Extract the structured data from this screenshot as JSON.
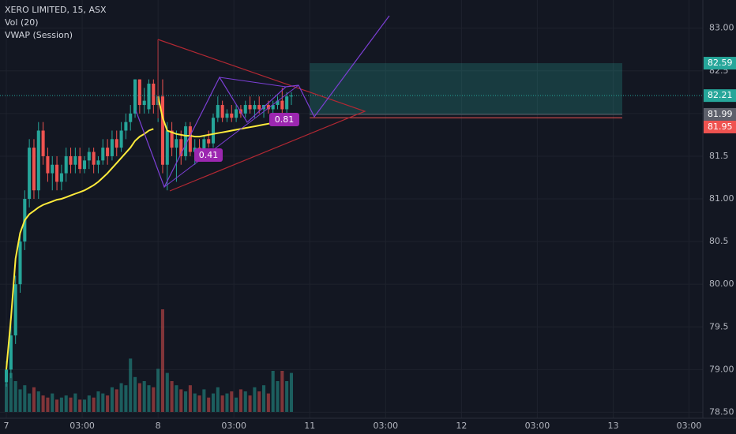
{
  "header": {
    "symbol": "XERO LIMITED, 15, ASX",
    "volume": "Vol (20)",
    "vwap": "VWAP (Session)"
  },
  "annotations": [
    0.41,
    0.81
  ],
  "chart_data": {
    "type": "candlestick",
    "x": [
      0,
      1,
      2,
      3,
      4,
      5,
      6,
      7,
      8,
      9,
      10,
      11,
      12,
      13,
      14,
      15,
      16,
      17,
      18,
      19,
      20,
      21,
      22,
      23,
      24,
      25,
      26,
      27,
      28,
      29,
      30,
      31,
      32,
      33,
      34,
      35,
      36,
      37,
      38,
      39,
      40,
      41,
      42,
      43,
      44,
      45,
      46,
      47,
      48,
      49,
      50,
      51,
      52,
      53,
      54,
      55,
      56,
      57,
      58,
      59,
      60,
      61,
      62
    ],
    "open": [
      78.85,
      79.0,
      79.4,
      80.0,
      80.5,
      81.0,
      81.6,
      81.1,
      81.8,
      81.5,
      81.3,
      81.4,
      81.2,
      81.3,
      81.5,
      81.4,
      81.5,
      81.35,
      81.45,
      81.55,
      81.4,
      81.45,
      81.6,
      81.5,
      81.7,
      81.6,
      81.8,
      81.9,
      82.0,
      82.4,
      82.1,
      82.05,
      82.35,
      82.1,
      82.2,
      81.4,
      81.8,
      81.6,
      81.7,
      81.5,
      81.85,
      81.55,
      81.6,
      81.5,
      81.7,
      81.65,
      81.95,
      82.1,
      81.95,
      82.0,
      81.95,
      82.05,
      82.0,
      82.1,
      82.05,
      82.1,
      82.05,
      82.1,
      82.05,
      82.1,
      82.15,
      82.05,
      82.2
    ],
    "high": [
      79.1,
      79.6,
      80.1,
      80.6,
      81.1,
      81.7,
      81.7,
      81.9,
      81.9,
      81.6,
      81.5,
      81.5,
      81.4,
      81.6,
      81.6,
      81.6,
      81.6,
      81.5,
      81.6,
      81.6,
      81.5,
      81.7,
      81.7,
      81.8,
      81.8,
      81.9,
      82.0,
      82.1,
      82.4,
      82.4,
      82.3,
      82.4,
      82.4,
      82.85,
      82.4,
      81.9,
      81.9,
      81.8,
      81.8,
      81.9,
      81.9,
      81.7,
      81.7,
      81.75,
      81.8,
      82.0,
      82.2,
      82.15,
      82.05,
      82.1,
      82.1,
      82.1,
      82.15,
      82.2,
      82.15,
      82.2,
      82.1,
      82.15,
      82.15,
      82.2,
      82.3,
      82.25,
      82.25
    ],
    "low": [
      78.8,
      78.9,
      79.3,
      79.9,
      80.4,
      80.9,
      81.0,
      81.0,
      81.4,
      81.2,
      81.1,
      81.1,
      81.1,
      81.2,
      81.3,
      81.3,
      81.3,
      81.3,
      81.35,
      81.3,
      81.3,
      81.4,
      81.4,
      81.45,
      81.5,
      81.55,
      81.7,
      81.8,
      81.95,
      82.0,
      82.0,
      82.0,
      82.0,
      81.9,
      81.3,
      81.1,
      81.5,
      81.2,
      81.4,
      81.45,
      81.5,
      81.4,
      81.45,
      81.45,
      81.6,
      81.6,
      81.9,
      81.9,
      81.9,
      81.9,
      81.9,
      81.95,
      81.95,
      82.0,
      81.95,
      82.0,
      81.95,
      82.0,
      82.0,
      82.05,
      82.0,
      82.0,
      82.1
    ],
    "close": [
      79.0,
      79.4,
      80.0,
      80.5,
      81.0,
      81.6,
      81.1,
      81.8,
      81.5,
      81.3,
      81.4,
      81.2,
      81.3,
      81.5,
      81.4,
      81.5,
      81.35,
      81.45,
      81.55,
      81.4,
      81.45,
      81.6,
      81.5,
      81.7,
      81.6,
      81.8,
      81.9,
      82.0,
      82.4,
      82.1,
      82.15,
      82.35,
      82.1,
      82.2,
      81.4,
      81.8,
      81.6,
      81.7,
      81.5,
      81.85,
      81.55,
      81.6,
      81.5,
      81.7,
      81.65,
      81.95,
      82.1,
      81.95,
      82.0,
      81.95,
      82.05,
      82.0,
      82.1,
      82.05,
      82.1,
      82.05,
      82.1,
      82.05,
      82.1,
      82.15,
      82.05,
      82.2,
      82.21
    ],
    "volume": [
      28,
      38,
      30,
      22,
      26,
      18,
      24,
      20,
      16,
      14,
      18,
      12,
      14,
      16,
      14,
      18,
      12,
      12,
      16,
      14,
      20,
      18,
      16,
      24,
      22,
      28,
      26,
      52,
      34,
      28,
      30,
      26,
      24,
      42,
      100,
      38,
      30,
      26,
      22,
      20,
      26,
      18,
      16,
      22,
      14,
      18,
      24,
      16,
      18,
      20,
      14,
      22,
      20,
      16,
      24,
      20,
      26,
      18,
      40,
      30,
      40,
      30,
      38
    ],
    "vwap": [
      79.0,
      79.6,
      80.3,
      80.6,
      80.75,
      80.82,
      80.86,
      80.9,
      80.93,
      80.95,
      80.97,
      80.99,
      81.0,
      81.02,
      81.04,
      81.06,
      81.08,
      81.1,
      81.13,
      81.16,
      81.2,
      81.25,
      81.3,
      81.36,
      81.42,
      81.48,
      81.54,
      81.6,
      81.68,
      81.73,
      81.76,
      81.8,
      81.82,
      82.2,
      81.95,
      81.8,
      81.78,
      81.76,
      81.75,
      81.74,
      81.74,
      81.73,
      81.73,
      81.74,
      81.75,
      81.76,
      81.77,
      81.78,
      81.79,
      81.8,
      81.81,
      81.82,
      81.83,
      81.84,
      81.85,
      81.86,
      81.87,
      81.88,
      81.89,
      81.9,
      81.92,
      81.94,
      81.95
    ],
    "up_color": "#26a69a",
    "down_color": "#ef5350",
    "vwap_color": "#ffeb3b",
    "xlim": [
      -1.38,
      151.5
    ],
    "ylim": [
      78.43,
      83.33
    ],
    "vlim": [
      0,
      100
    ],
    "xticks": [
      {
        "value": 0,
        "label": "7"
      },
      {
        "value": 16.5,
        "label": "03:00"
      },
      {
        "value": 33,
        "label": "8"
      },
      {
        "value": 49.5,
        "label": "03:00"
      },
      {
        "value": 66,
        "label": "11"
      },
      {
        "value": 82.5,
        "label": "03:00"
      },
      {
        "value": 99,
        "label": "12"
      },
      {
        "value": 115.5,
        "label": "03:00"
      },
      {
        "value": 132,
        "label": "13"
      },
      {
        "value": 148.5,
        "label": "03:00"
      }
    ],
    "yticks": [
      {
        "value": 78.5,
        "label": "78.50"
      },
      {
        "value": 79,
        "label": "79.00"
      },
      79.5,
      {
        "value": 80,
        "label": "80.00"
      },
      80.5,
      {
        "value": 81,
        "label": "81.00"
      },
      81.5,
      {
        "value": 82,
        "label": "82.00"
      },
      82.5,
      {
        "value": 83,
        "label": "83.00"
      }
    ],
    "grid": true,
    "price_labels": [
      {
        "value": 82.59,
        "color": "#26a69a"
      },
      {
        "value": 82.21,
        "color": "#26a69a"
      },
      {
        "value": 81.99,
        "color": "#5d606b"
      },
      {
        "value": 81.95,
        "color": "#ef5350"
      }
    ]
  }
}
